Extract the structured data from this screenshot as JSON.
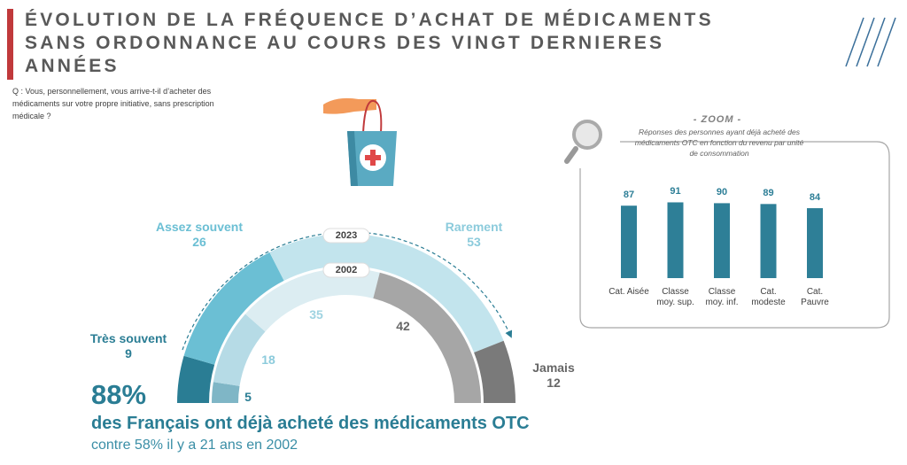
{
  "title": "ÉVOLUTION DE LA FRÉQUENCE D’ACHAT DE MÉDICAMENTS SANS ORDONNANCE AU COURS DES VINGT DERNIERES ANNÉES",
  "question": "Q : Vous, personnellement, vous arrive-t-il d’acheter des médicaments sur votre propre initiative, sans prescription médicale ?",
  "headline": {
    "value": "88%",
    "text": "des Français ont déjà acheté des médicaments OTC",
    "note": "contre 58% il y a 21 ans en 2002"
  },
  "chart_data": [
    {
      "type": "semidonut",
      "categories": [
        "Très souvent",
        "Assez souvent",
        "Rarement",
        "Jamais"
      ],
      "series": [
        {
          "name": "2023",
          "colors": [
            "#2a7d94",
            "#6bbfd4",
            "#c2e4ed",
            "#7a7a7a"
          ],
          "values": [
            9,
            26,
            53,
            12
          ]
        },
        {
          "name": "2002",
          "colors": [
            "#7fb6c6",
            "#b6dbe6",
            "#dcedf2",
            "#a6a6a6"
          ],
          "values": [
            5,
            18,
            35,
            42
          ]
        }
      ]
    },
    {
      "type": "bar",
      "title": "- ZOOM -",
      "subtitle": "Réponses des personnes ayant déjà acheté des médicaments OTC en fonction du revenu par unité de consommation",
      "categories": [
        "Cat. Aisée",
        "Classe moy. sup.",
        "Classe moy. inf.",
        "Cat. modeste",
        "Cat. Pauvre"
      ],
      "values": [
        87,
        91,
        90,
        89,
        84
      ],
      "color": "#2e7f97",
      "ylim": [
        0,
        100
      ]
    }
  ]
}
